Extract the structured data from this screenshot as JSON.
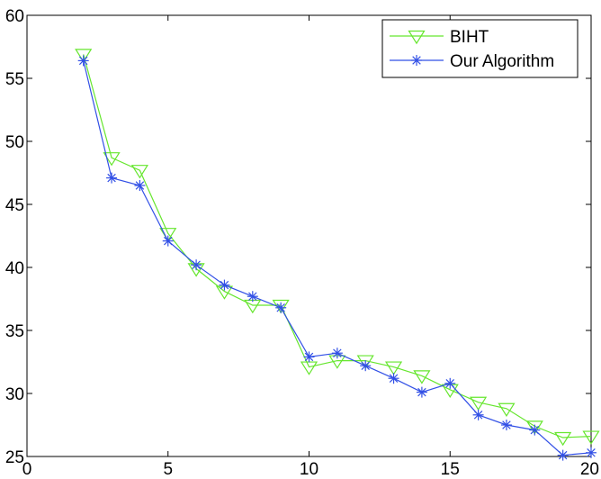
{
  "chart_data": {
    "type": "line",
    "title": "",
    "xlabel": "",
    "ylabel": "",
    "xlim": [
      0,
      20
    ],
    "ylim": [
      25,
      60
    ],
    "xticks": [
      0,
      5,
      10,
      15,
      20
    ],
    "yticks": [
      25,
      30,
      35,
      40,
      45,
      50,
      55,
      60
    ],
    "grid": false,
    "legend": {
      "position": "top-right"
    },
    "x": [
      2,
      3,
      4,
      5,
      6,
      7,
      8,
      9,
      10,
      11,
      12,
      13,
      14,
      15,
      16,
      17,
      18,
      19,
      20
    ],
    "series": [
      {
        "name": "BIHT",
        "color": "#66e62e",
        "marker": "triangle-down",
        "values": [
          56.9,
          48.7,
          47.7,
          42.7,
          39.9,
          38.1,
          37.0,
          37.0,
          32.1,
          32.6,
          32.6,
          32.1,
          31.4,
          30.3,
          29.3,
          28.8,
          27.4,
          26.5,
          26.6
        ]
      },
      {
        "name": "Our Algorithm",
        "color": "#3250e6",
        "marker": "asterisk",
        "values": [
          56.4,
          47.1,
          46.5,
          42.1,
          40.2,
          38.6,
          37.7,
          36.8,
          32.9,
          33.2,
          32.2,
          31.2,
          30.1,
          30.8,
          28.3,
          27.5,
          27.1,
          25.1,
          25.3
        ]
      }
    ]
  }
}
